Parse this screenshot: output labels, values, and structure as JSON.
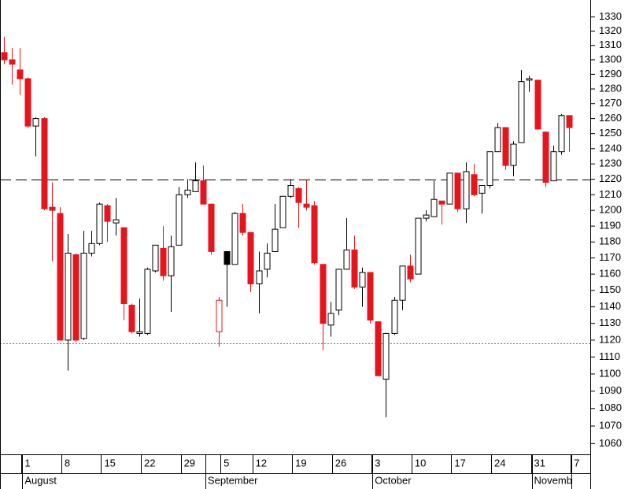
{
  "chart_data": {
    "type": "candlestick",
    "categories": [
      null,
      null,
      null,
      "1",
      null,
      null,
      null,
      null,
      "8",
      null,
      null,
      null,
      null,
      "15",
      null,
      null,
      null,
      null,
      "22",
      null,
      null,
      null,
      null,
      "29",
      null,
      null,
      null,
      null,
      "5",
      null,
      null,
      null,
      "12",
      null,
      null,
      null,
      null,
      "19",
      null,
      null,
      null,
      null,
      "26",
      null,
      null,
      null,
      null,
      "3",
      null,
      null,
      null,
      null,
      "10",
      null,
      null,
      null,
      null,
      "17",
      null,
      null,
      null,
      null,
      "24",
      null,
      null,
      null,
      null,
      "31",
      null,
      null,
      null,
      null,
      "7"
    ],
    "month_labels": [
      null,
      null,
      null,
      "August",
      null,
      null,
      null,
      null,
      null,
      null,
      null,
      null,
      null,
      null,
      null,
      null,
      null,
      null,
      null,
      null,
      null,
      null,
      null,
      null,
      null,
      null,
      "September",
      null,
      null,
      null,
      null,
      null,
      null,
      null,
      null,
      null,
      null,
      null,
      null,
      null,
      null,
      null,
      null,
      null,
      null,
      null,
      null,
      "October",
      null,
      null,
      null,
      null,
      null,
      null,
      null,
      null,
      null,
      null,
      null,
      null,
      null,
      null,
      null,
      null,
      null,
      null,
      null,
      "Novemb",
      null,
      null,
      null,
      null
    ],
    "open": [
      1305,
      1300,
      1293,
      1287,
      1255,
      1260,
      1202,
      1198,
      1120,
      1172,
      1121,
      1173,
      1179,
      1203,
      1192,
      1189,
      1141,
      1124,
      1124,
      1162,
      1176,
      1159,
      1178,
      1210,
      1212,
      1219,
      1204,
      1125,
      1174,
      1166,
      1198,
      1186,
      1154,
      1163,
      1174,
      1189,
      1209,
      1214,
      1204,
      1203,
      1166,
      1129,
      1138,
      1163,
      1175,
      1152,
      1161,
      1131,
      1097,
      1124,
      1144,
      1165,
      1160,
      1195,
      1196,
      1206,
      1204,
      1224,
      1201,
      1223,
      1211,
      1216,
      1238,
      1254,
      1229,
      1244,
      1286,
      1286,
      1251,
      1219,
      1238,
      1262,
      null
    ],
    "high": [
      1316,
      1308,
      1308,
      1288,
      1261,
      1261,
      1218,
      1202,
      1185,
      1173,
      1187,
      1187,
      1205,
      1204,
      1208,
      1189,
      1142,
      1145,
      1164,
      1178,
      1190,
      1184,
      1215,
      1220,
      1231,
      1229,
      1204,
      1146,
      1174,
      1199,
      1204,
      1186,
      1174,
      1179,
      1204,
      1209,
      1220,
      1215,
      1220,
      1206,
      1166,
      1143,
      1163,
      1195,
      1184,
      1164,
      1161,
      1131,
      1124,
      1146,
      1165,
      1172,
      1195,
      1200,
      1219,
      1206,
      1224,
      1224,
      1231,
      1230,
      1216,
      1238,
      1257,
      1254,
      1245,
      1293,
      1289,
      1286,
      1251,
      1242,
      1263,
      1262,
      null
    ],
    "low": [
      1297,
      1283,
      1276,
      1254,
      1235,
      1200,
      1168,
      1120,
      1102,
      1119,
      1120,
      1171,
      1178,
      1180,
      1184,
      1132,
      1124,
      1122,
      1123,
      1161,
      1156,
      1137,
      1178,
      1208,
      1212,
      1204,
      1172,
      1116,
      1140,
      1166,
      1184,
      1149,
      1136,
      1158,
      1174,
      1189,
      1208,
      1189,
      1200,
      1166,
      1114,
      1122,
      1135,
      1163,
      1151,
      1140,
      1130,
      1099,
      1075,
      1123,
      1138,
      1155,
      1160,
      1193,
      1196,
      1191,
      1204,
      1199,
      1192,
      1209,
      1198,
      1214,
      1238,
      1226,
      1222,
      1244,
      1278,
      1253,
      1215,
      1219,
      1236,
      1238,
      null
    ],
    "close": [
      1300,
      1297,
      1287,
      1255,
      1260,
      1201,
      1200,
      1120,
      1173,
      1120,
      1173,
      1179,
      1204,
      1193,
      1194,
      1142,
      1125,
      1125,
      1163,
      1178,
      1159,
      1177,
      1210,
      1213,
      1219,
      1204,
      1174,
      1144,
      1166,
      1198,
      1186,
      1154,
      1162,
      1173,
      1188,
      1209,
      1216,
      1205,
      1202,
      1167,
      1130,
      1136,
      1163,
      1175,
      1152,
      1161,
      1132,
      1099,
      1124,
      1144,
      1165,
      1157,
      1195,
      1197,
      1207,
      1204,
      1224,
      1201,
      1225,
      1210,
      1216,
      1238,
      1254,
      1229,
      1243,
      1285,
      1287,
      1253,
      1218,
      1238,
      1262,
      1254,
      null
    ],
    "up_color": "#000000",
    "down_color": "#e8141c",
    "ylim": [
      1054,
      1342
    ],
    "log_scale": true,
    "yticks": [
      1060,
      1070,
      1080,
      1090,
      1100,
      1110,
      1120,
      1130,
      1140,
      1150,
      1160,
      1170,
      1180,
      1190,
      1200,
      1210,
      1220,
      1230,
      1240,
      1250,
      1260,
      1270,
      1280,
      1290,
      1300,
      1310,
      1320,
      1330
    ],
    "hlines": [
      {
        "value": 1220,
        "color": "#000000",
        "style": "dashed"
      },
      {
        "value": 1118,
        "color": "#22aa22",
        "style": "dotted"
      }
    ]
  }
}
